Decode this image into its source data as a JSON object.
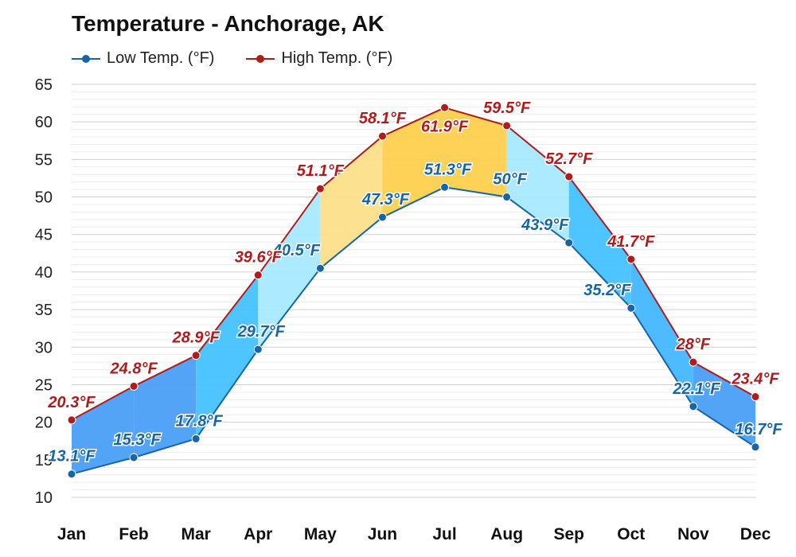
{
  "chart_data": {
    "type": "line",
    "title": "Temperature - Anchorage, AK",
    "categories": [
      "Jan",
      "Feb",
      "Mar",
      "Apr",
      "May",
      "Jun",
      "Jul",
      "Aug",
      "Sep",
      "Oct",
      "Nov",
      "Dec"
    ],
    "series": [
      {
        "name": "Low Temp. (°F)",
        "color": "#1565a8",
        "values": [
          13.1,
          15.3,
          17.8,
          29.7,
          40.5,
          47.3,
          51.3,
          50,
          43.9,
          35.2,
          22.1,
          16.7
        ],
        "labels": [
          "13.1°F",
          "15.3°F",
          "17.8°F",
          "29.7°F",
          "40.5°F",
          "47.3°F",
          "51.3°F",
          "50°F",
          "43.9°F",
          "35.2°F",
          "22.1°F",
          "16.7°F"
        ]
      },
      {
        "name": "High Temp. (°F)",
        "color": "#b01c1c",
        "values": [
          20.3,
          24.8,
          28.9,
          39.6,
          51.1,
          58.1,
          61.9,
          59.5,
          52.7,
          41.7,
          28,
          23.4
        ],
        "labels": [
          "20.3°F",
          "24.8°F",
          "28.9°F",
          "39.6°F",
          "51.1°F",
          "58.1°F",
          "61.9°F",
          "59.5°F",
          "52.7°F",
          "41.7°F",
          "28°F",
          "23.4°F"
        ]
      }
    ],
    "yticks": [
      "10",
      "15",
      "20",
      "25",
      "30",
      "35",
      "40",
      "45",
      "50",
      "55",
      "60",
      "65"
    ],
    "ylim": [
      10,
      65
    ],
    "xlabel": "",
    "ylabel": "",
    "grid": true,
    "legend": "top-left",
    "band_colors": [
      "#4a9ff5",
      "#4a9ff5",
      "#44c2ff",
      "#a6e9ff",
      "#fce08a",
      "#fdd04e",
      "#fdd04e",
      "#a6e9ff",
      "#44c2ff",
      "#44b6ff",
      "#4a9ff5"
    ]
  }
}
